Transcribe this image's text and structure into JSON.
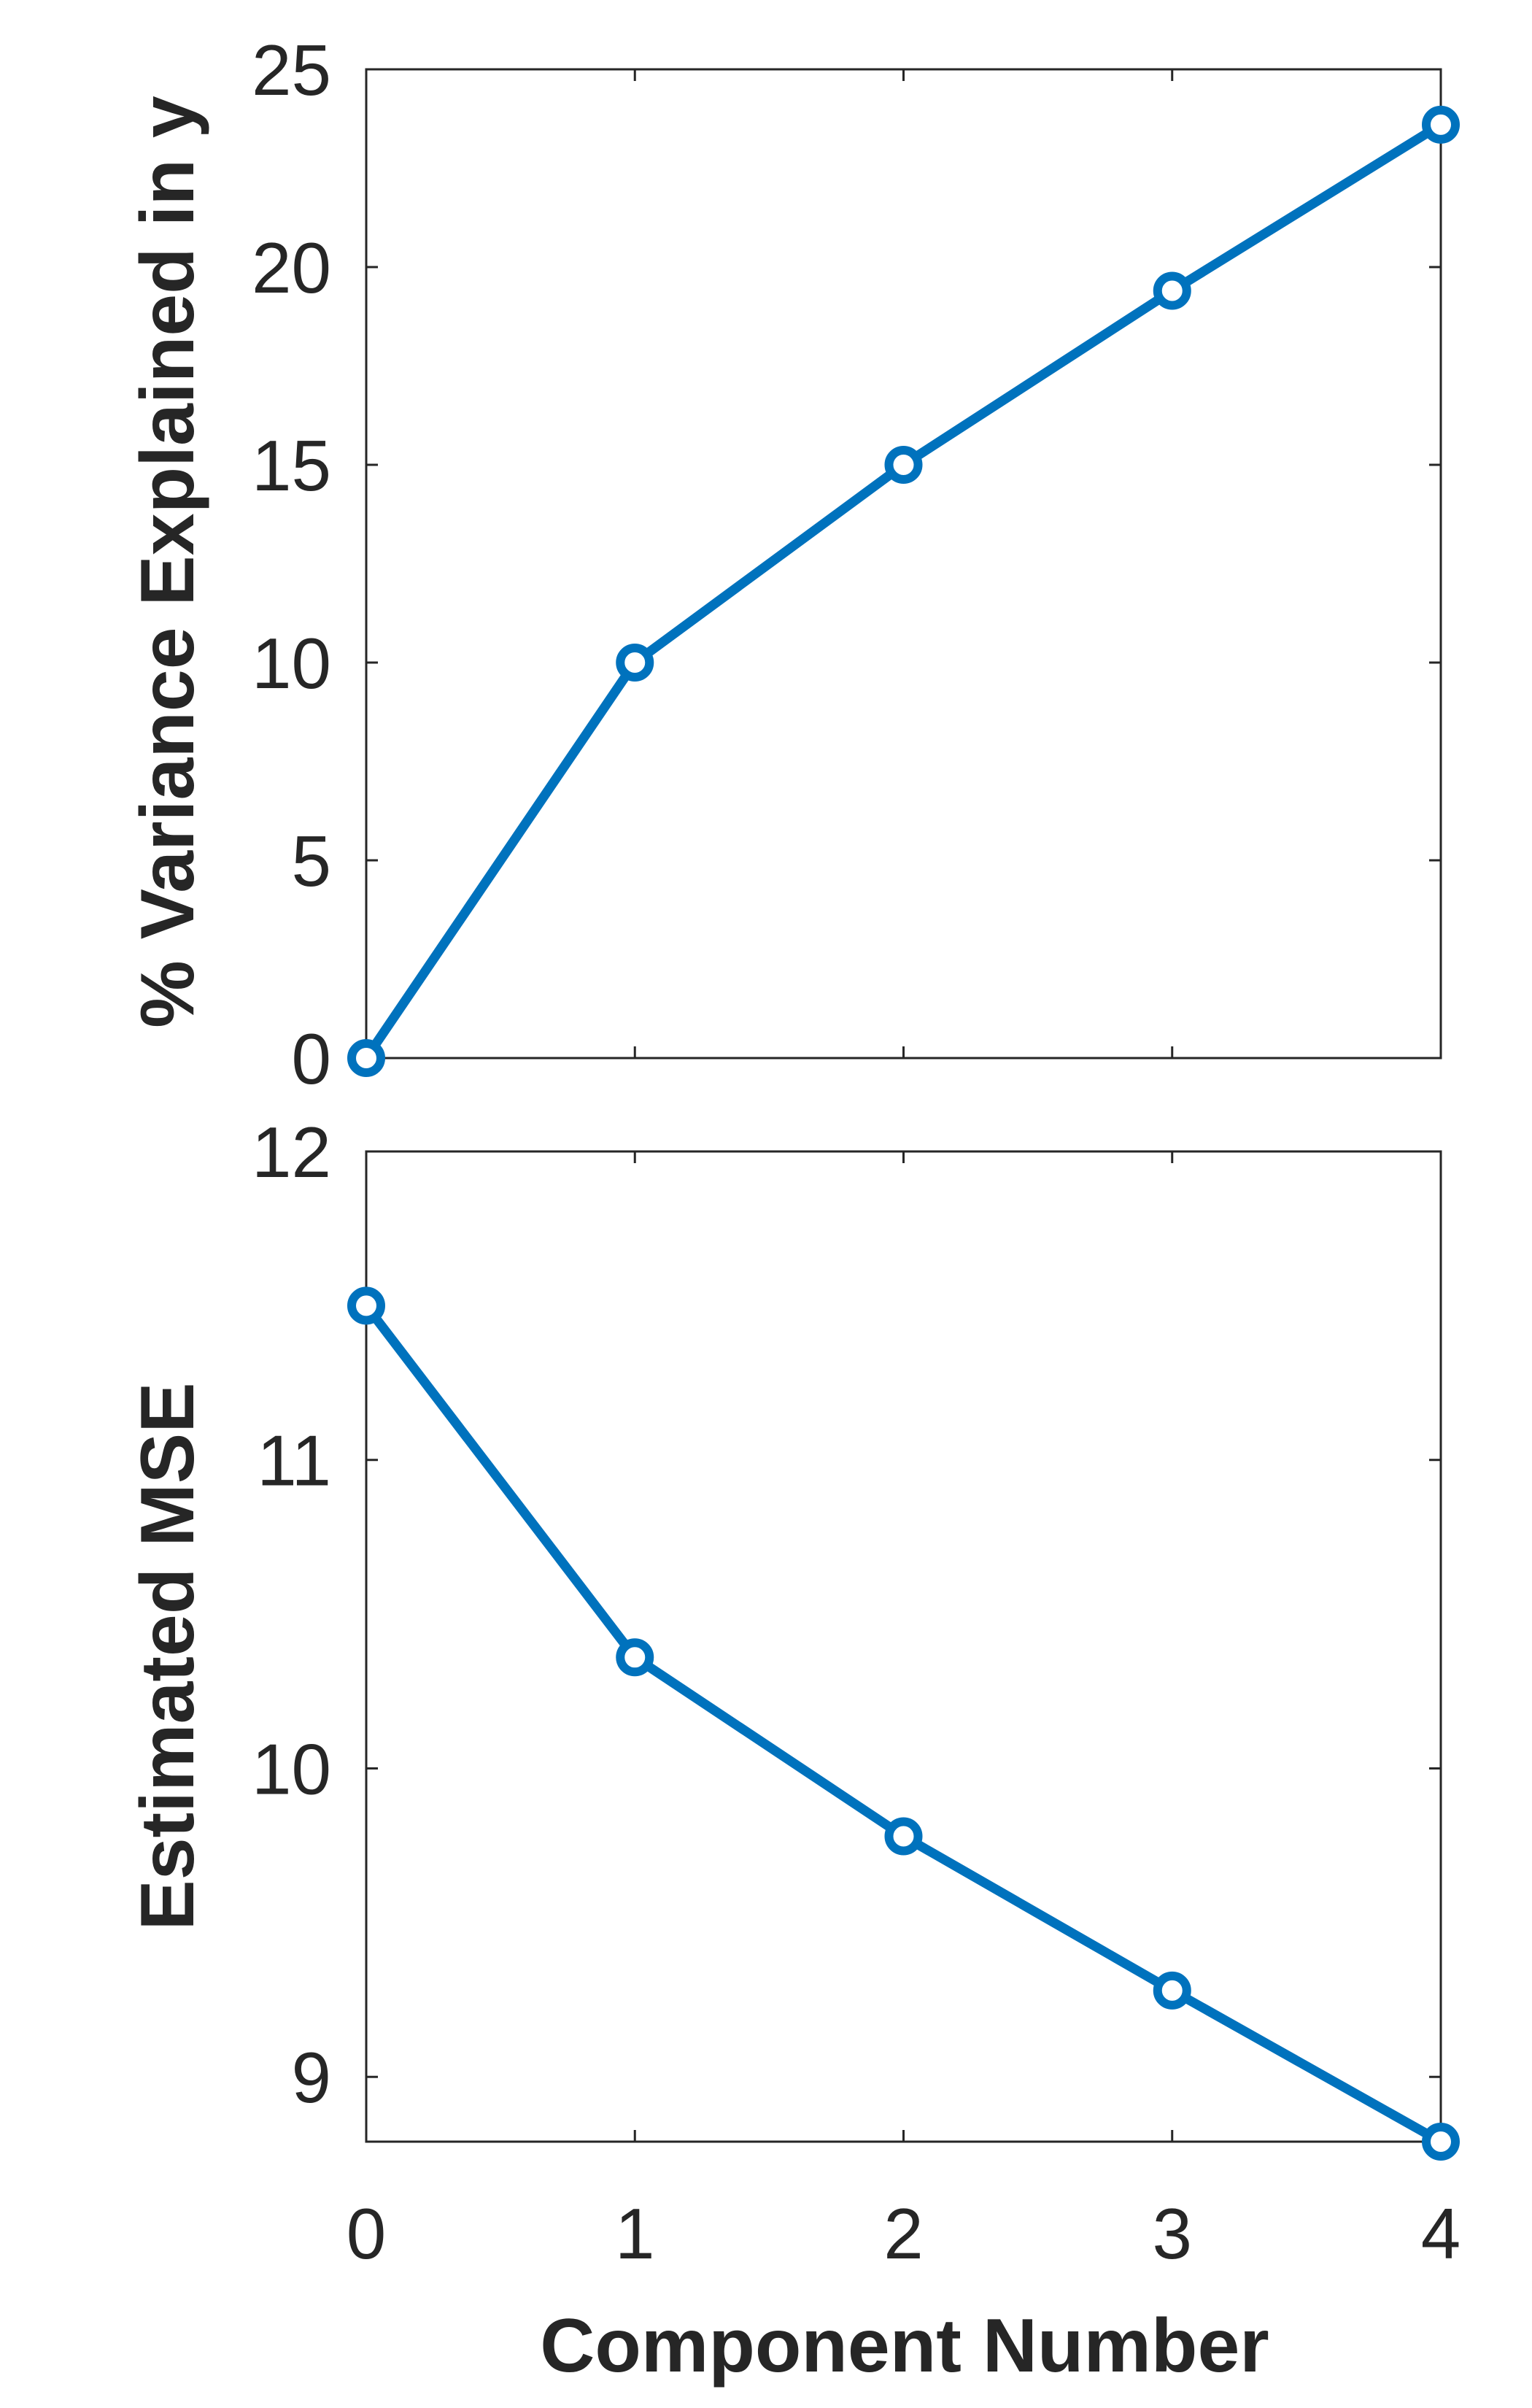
{
  "chart_data": [
    {
      "type": "line",
      "title": "",
      "xlabel": "",
      "ylabel": "% Variance Explained in y",
      "xlim": [
        0,
        4
      ],
      "ylim": [
        0,
        25
      ],
      "x": [
        0,
        1,
        2,
        3,
        4
      ],
      "x_ticks": [
        0,
        1,
        2,
        3,
        4
      ],
      "y_ticks": [
        0,
        5,
        10,
        15,
        20,
        25
      ],
      "show_x_tick_labels": false,
      "series": [
        {
          "values": [
            0,
            10,
            15,
            19.4,
            23.6
          ],
          "color": "#0072BD",
          "marker": "circle"
        }
      ],
      "grid": false
    },
    {
      "type": "line",
      "title": "",
      "xlabel": "Component Number",
      "ylabel": "Estimated MSE",
      "xlim": [
        0,
        4
      ],
      "ylim": [
        8.79,
        12
      ],
      "x": [
        0,
        1,
        2,
        3,
        4
      ],
      "x_ticks": [
        0,
        1,
        2,
        3,
        4
      ],
      "y_ticks": [
        9,
        10,
        11,
        12
      ],
      "show_x_tick_labels": true,
      "series": [
        {
          "values": [
            11.5,
            10.36,
            9.78,
            9.28,
            8.79
          ],
          "color": "#0072BD",
          "marker": "circle"
        }
      ],
      "grid": false
    }
  ]
}
